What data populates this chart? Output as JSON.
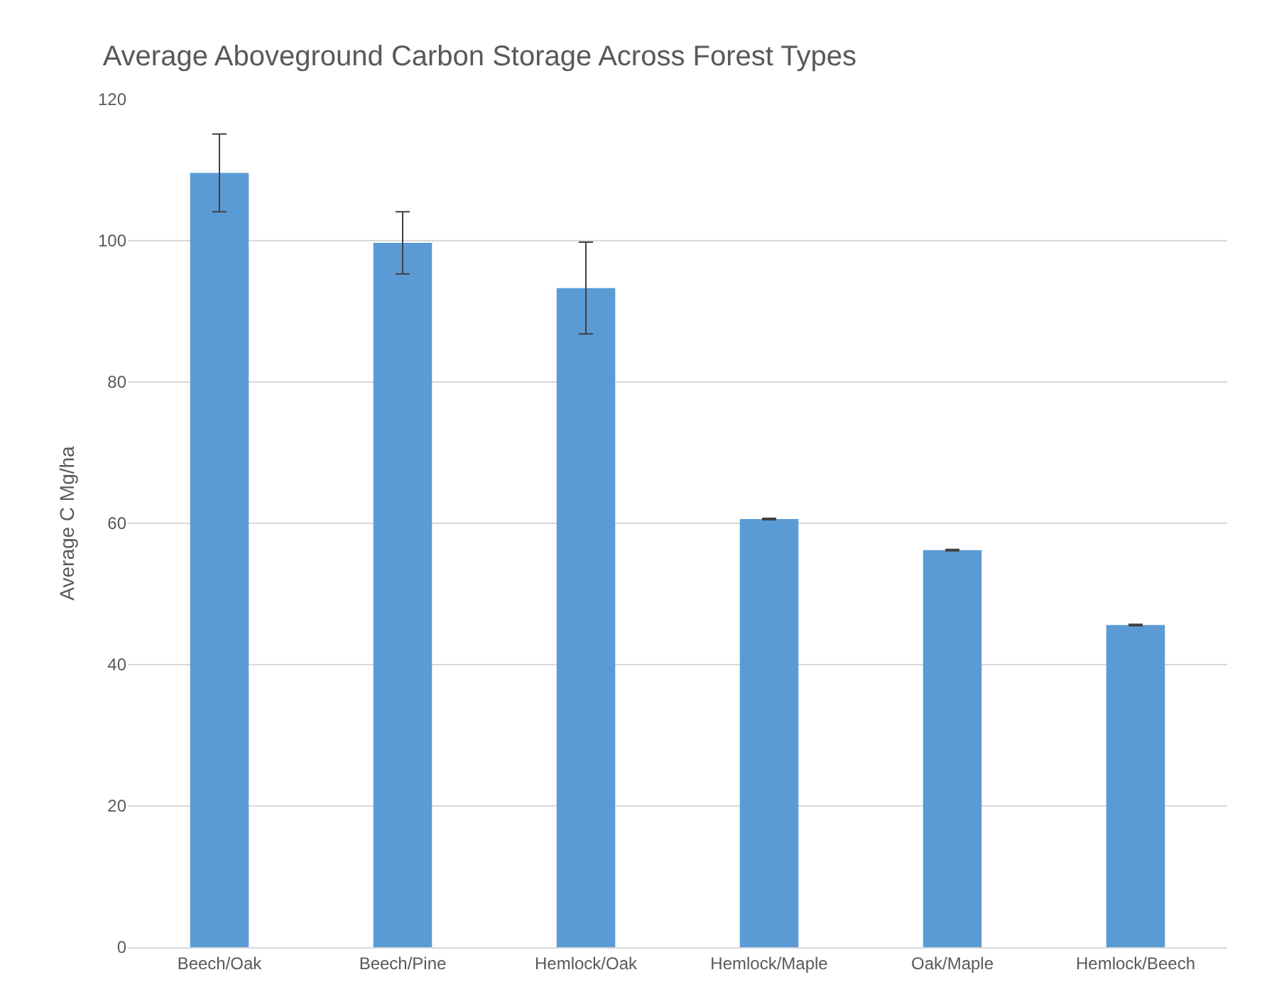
{
  "chart_data": {
    "type": "bar",
    "title": "Average Aboveground Carbon Storage Across Forest Types",
    "ylabel": "Average C Mg/ha",
    "categories": [
      "Beech/Oak",
      "Beech/Pine",
      "Hemlock/Oak",
      "Hemlock/Maple",
      "Oak/Maple",
      "Hemlock/Beech"
    ],
    "values": [
      109.6,
      99.7,
      93.3,
      60.6,
      56.2,
      45.6
    ],
    "errors": [
      5.5,
      4.4,
      6.5,
      0.1,
      0.1,
      0.1
    ],
    "color": "#5b9bd5",
    "ylim": [
      0,
      120
    ],
    "yticks": [
      0,
      20,
      40,
      60,
      80,
      100,
      120
    ],
    "grid": "y"
  }
}
